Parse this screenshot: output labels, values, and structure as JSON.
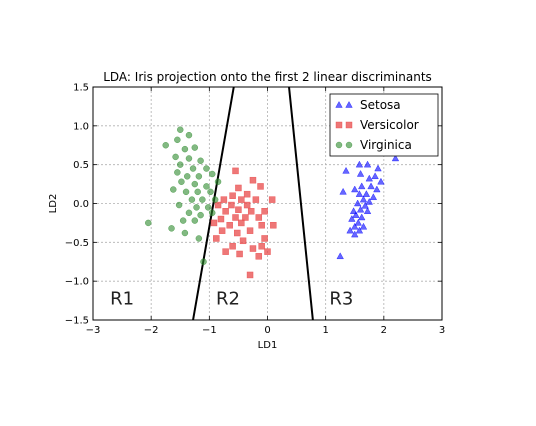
{
  "chart_data": {
    "type": "scatter",
    "title": "LDA: Iris projection onto the first 2 linear discriminants",
    "xlabel": "LD1",
    "ylabel": "LD2",
    "xlim": [
      -3,
      3
    ],
    "ylim": [
      -1.5,
      1.5
    ],
    "xticks": [
      "−3",
      "−2",
      "−1",
      "0",
      "1",
      "2",
      "3"
    ],
    "yticks": [
      "−1.5",
      "−1.0",
      "−0.5",
      "0.0",
      "0.5",
      "1.0",
      "1.5"
    ],
    "grid": true,
    "legend_position": "top-right",
    "series": [
      {
        "name": "Setosa",
        "marker": "triangle",
        "color": "#0000ff",
        "points": [
          [
            1.55,
            0.9
          ],
          [
            1.75,
            0.92
          ],
          [
            1.68,
            0.78
          ],
          [
            1.95,
            0.82
          ],
          [
            2.1,
            0.72
          ],
          [
            1.8,
            0.68
          ],
          [
            2.2,
            0.58
          ],
          [
            1.58,
            0.5
          ],
          [
            1.72,
            0.5
          ],
          [
            1.9,
            0.45
          ],
          [
            1.35,
            0.42
          ],
          [
            1.6,
            0.38
          ],
          [
            1.75,
            0.32
          ],
          [
            1.85,
            0.35
          ],
          [
            1.95,
            0.28
          ],
          [
            1.62,
            0.22
          ],
          [
            1.78,
            0.22
          ],
          [
            1.88,
            0.18
          ],
          [
            1.5,
            0.18
          ],
          [
            1.3,
            0.15
          ],
          [
            1.58,
            0.12
          ],
          [
            1.7,
            0.12
          ],
          [
            1.82,
            0.08
          ],
          [
            1.65,
            0.05
          ],
          [
            1.75,
            0.02
          ],
          [
            1.55,
            0.0
          ],
          [
            1.68,
            -0.03
          ],
          [
            1.6,
            -0.08
          ],
          [
            1.48,
            -0.1
          ],
          [
            1.72,
            -0.1
          ],
          [
            1.52,
            -0.15
          ],
          [
            1.62,
            -0.18
          ],
          [
            1.45,
            -0.2
          ],
          [
            1.56,
            -0.25
          ],
          [
            1.5,
            -0.3
          ],
          [
            1.65,
            -0.3
          ],
          [
            1.42,
            -0.35
          ],
          [
            1.58,
            -0.35
          ],
          [
            1.5,
            -0.4
          ],
          [
            1.25,
            -0.68
          ]
        ]
      },
      {
        "name": "Versicolor",
        "marker": "square",
        "color": "#e8494a",
        "points": [
          [
            -0.55,
            0.42
          ],
          [
            -0.25,
            0.3
          ],
          [
            -0.5,
            0.2
          ],
          [
            -0.12,
            0.22
          ],
          [
            -0.6,
            0.1
          ],
          [
            -0.35,
            0.12
          ],
          [
            -0.75,
            0.05
          ],
          [
            -0.45,
            0.05
          ],
          [
            -0.2,
            0.05
          ],
          [
            0.08,
            0.05
          ],
          [
            -0.85,
            -0.02
          ],
          [
            -0.62,
            -0.02
          ],
          [
            -0.35,
            -0.02
          ],
          [
            -0.72,
            -0.1
          ],
          [
            -0.5,
            -0.08
          ],
          [
            -0.28,
            -0.1
          ],
          [
            -0.05,
            -0.1
          ],
          [
            -0.55,
            -0.18
          ],
          [
            -0.38,
            -0.18
          ],
          [
            -0.15,
            -0.18
          ],
          [
            -0.8,
            -0.2
          ],
          [
            -0.92,
            -0.25
          ],
          [
            -0.65,
            -0.28
          ],
          [
            -0.45,
            -0.25
          ],
          [
            -0.1,
            -0.28
          ],
          [
            0.1,
            -0.28
          ],
          [
            -0.78,
            -0.35
          ],
          [
            -0.52,
            -0.38
          ],
          [
            -0.3,
            -0.35
          ],
          [
            -0.42,
            -0.48
          ],
          [
            -0.88,
            -0.45
          ],
          [
            -0.6,
            -0.55
          ],
          [
            -0.25,
            -0.58
          ],
          [
            -0.1,
            -0.55
          ],
          [
            0.0,
            -0.62
          ],
          [
            -0.72,
            -0.62
          ],
          [
            -0.48,
            -0.65
          ],
          [
            -0.15,
            -0.68
          ],
          [
            -0.3,
            -0.92
          ],
          [
            -0.05,
            -0.45
          ]
        ]
      },
      {
        "name": "Virginica",
        "marker": "circle",
        "color": "#2e8b2e",
        "points": [
          [
            -1.5,
            0.95
          ],
          [
            -1.35,
            0.88
          ],
          [
            -1.55,
            0.82
          ],
          [
            -1.75,
            0.75
          ],
          [
            -1.42,
            0.7
          ],
          [
            -1.25,
            0.72
          ],
          [
            -1.58,
            0.6
          ],
          [
            -1.35,
            0.58
          ],
          [
            -1.15,
            0.55
          ],
          [
            -1.5,
            0.5
          ],
          [
            -1.28,
            0.45
          ],
          [
            -1.05,
            0.45
          ],
          [
            -1.55,
            0.4
          ],
          [
            -1.38,
            0.35
          ],
          [
            -1.18,
            0.35
          ],
          [
            -0.95,
            0.38
          ],
          [
            -1.48,
            0.28
          ],
          [
            -1.25,
            0.25
          ],
          [
            -1.05,
            0.22
          ],
          [
            -0.85,
            0.28
          ],
          [
            -1.62,
            0.18
          ],
          [
            -1.4,
            0.15
          ],
          [
            -1.2,
            0.15
          ],
          [
            -0.98,
            0.15
          ],
          [
            -1.3,
            0.05
          ],
          [
            -1.12,
            0.05
          ],
          [
            -0.9,
            0.05
          ],
          [
            -1.52,
            -0.02
          ],
          [
            -1.22,
            -0.05
          ],
          [
            -1.02,
            -0.05
          ],
          [
            -1.35,
            -0.12
          ],
          [
            -1.15,
            -0.15
          ],
          [
            -0.95,
            -0.12
          ],
          [
            -1.45,
            -0.22
          ],
          [
            -1.25,
            -0.22
          ],
          [
            -2.05,
            -0.25
          ],
          [
            -1.65,
            -0.32
          ],
          [
            -1.42,
            -0.38
          ],
          [
            -1.18,
            -0.45
          ],
          [
            -1.1,
            -0.75
          ]
        ]
      }
    ],
    "boundaries": [
      {
        "x1": -0.58,
        "y1": 1.5,
        "x2": -1.28,
        "y2": -1.5
      },
      {
        "x1": 0.37,
        "y1": 1.5,
        "x2": 0.78,
        "y2": -1.5
      }
    ],
    "region_labels": [
      {
        "text": "R1",
        "x": -2.5,
        "y": -1.22
      },
      {
        "text": "R2",
        "x": -0.68,
        "y": -1.22
      },
      {
        "text": "R3",
        "x": 1.27,
        "y": -1.22
      }
    ]
  }
}
